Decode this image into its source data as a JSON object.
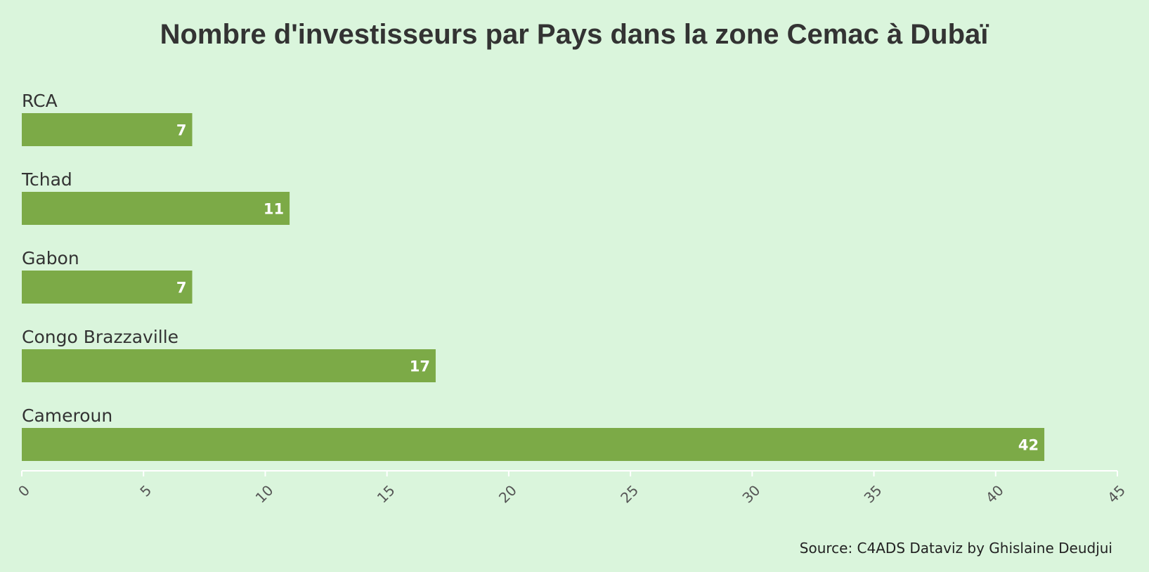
{
  "chart_data": {
    "type": "bar",
    "orientation": "horizontal",
    "title": "Nombre d'investisseurs par Pays dans la zone Cemac à Dubaï",
    "categories": [
      "RCA",
      "Tchad",
      "Gabon",
      "Congo Brazzaville",
      "Cameroun"
    ],
    "values": [
      7,
      11,
      7,
      17,
      42
    ],
    "xlim": [
      0,
      45
    ],
    "xticks": [
      0,
      5,
      10,
      15,
      20,
      25,
      30,
      35,
      40,
      45
    ],
    "xlabel": "",
    "ylabel": "",
    "grid": false,
    "legend": "none",
    "data_labels": true,
    "source": "Source: C4ADS Dataviz by Ghislaine Deudjui"
  },
  "colors": {
    "background": "#daf5dc",
    "bar": "#7caa47",
    "bar_label": "#ffffff",
    "text": "#333333",
    "axis": "#ffffff"
  }
}
